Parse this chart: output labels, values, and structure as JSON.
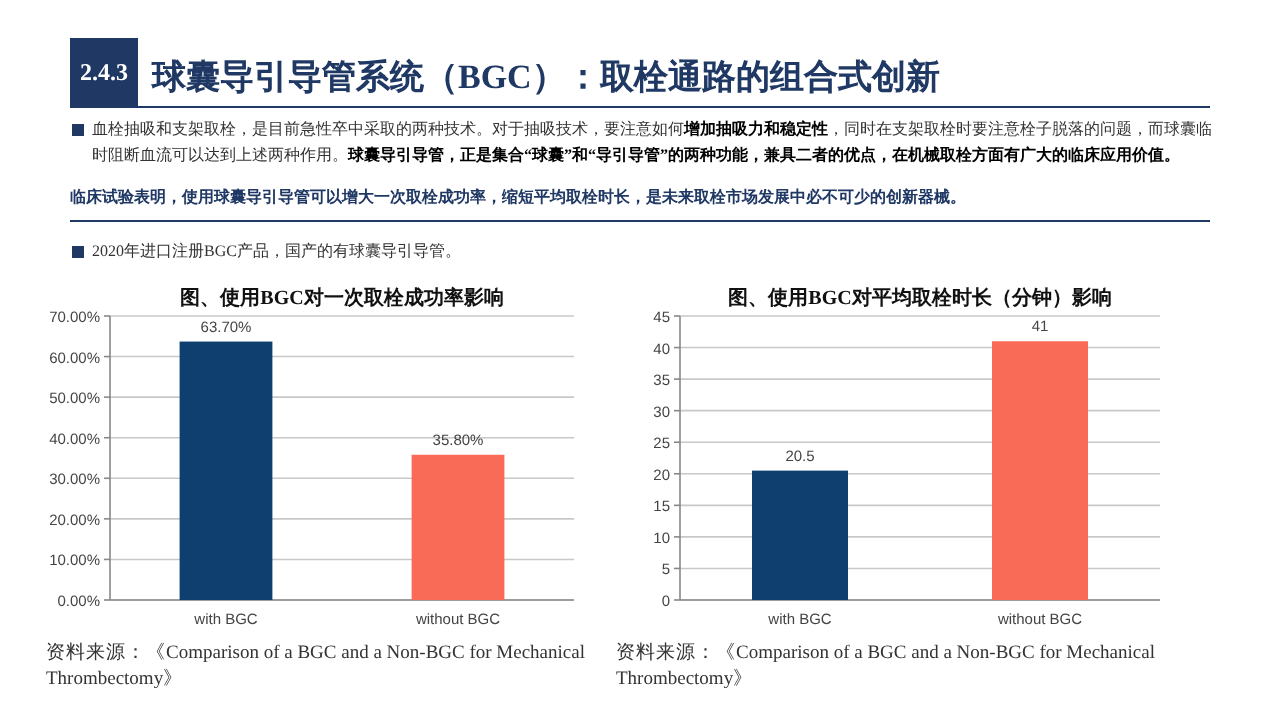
{
  "chart_data": [
    {
      "type": "other",
      "subtitle": "2.4.3",
      "title": "球囊导引导管系统（BGC）：取栓通路的组合式创新",
      "annotations": [
        "血栓抽吸和支架取栓，是目前急性卒中采取的两种技术。对于抽吸技术，要注意如何**增加抽吸力和稳定性**，同时在支架取栓时要注意栓子脱落的问题，而球囊临时阻断血流可以达到上述两种作用。**球囊导引导管，正是集合“球囊”和“导引导管”的两种功能，兼具二者的优点，在机械取栓方面有广大的临床应用价值。**",
        "临床试验表明，使用球囊导引导管可以增大一次取栓成功率，缩短平均取栓时长，是未来取栓市场发展中必不可少的创新器械。",
        "2020年进口注册BGC产品，国产的有球囊导引导管。"
      ]
    },
    {
      "type": "bar",
      "title": "图、使用BGC对一次取栓成功率影响",
      "categories": [
        "with BGC",
        "without BGC"
      ],
      "values": [
        63.7,
        35.8
      ],
      "colors": [
        "#0e3f6e",
        "#f96b57"
      ],
      "value_labels": [
        "63.70%",
        "35.80%"
      ],
      "ylim": [
        0,
        70
      ],
      "yticks": [
        {
          "value": 0,
          "label": "0.00%"
        },
        {
          "value": 10,
          "label": "10.00%"
        },
        {
          "value": 20,
          "label": "20.00%"
        },
        {
          "value": 30,
          "label": "30.00%"
        },
        {
          "value": 40,
          "label": "40.00%"
        },
        {
          "value": 50,
          "label": "50.00%"
        },
        {
          "value": 60,
          "label": "60.00%"
        },
        {
          "value": 70,
          "label": "70.00%"
        }
      ],
      "grid": "y",
      "annotations": [
        "资料来源：《Comparison of a BGC and a Non-BGC for Mechanical Thrombectomy》"
      ]
    },
    {
      "type": "bar",
      "title": "图、使用BGC对平均取栓时长（分钟）影响",
      "categories": [
        "with BGC",
        "without BGC"
      ],
      "values": [
        20.5,
        41
      ],
      "colors": [
        "#0e3f6e",
        "#f96b57"
      ],
      "data_labels": true,
      "ylim": [
        0,
        45
      ],
      "yticks": [
        0,
        5,
        10,
        15,
        20,
        25,
        30,
        35,
        40,
        45
      ],
      "grid": "y",
      "annotations": [
        "资料来源：《Comparison of a BGC and a Non-BGC for Mechanical Thrombectomy》"
      ]
    }
  ]
}
